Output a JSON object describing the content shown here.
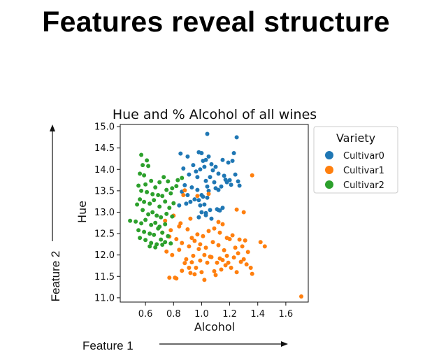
{
  "slide": {
    "title": "Features reveal structure",
    "feature1_label": "Feature 1",
    "feature2_label": "Feature 2"
  },
  "chart_data": {
    "type": "scatter",
    "title": "Hue and % Alcohol of all wines",
    "xlabel": "Alcohol",
    "ylabel": "Hue",
    "xlim": [
      0.42,
      1.76
    ],
    "ylim": [
      10.9,
      15.05
    ],
    "xticks": [
      0.6,
      0.8,
      1.0,
      1.2,
      1.4,
      1.6
    ],
    "xtick_labels": [
      "0.6",
      "0.8",
      "1.0",
      "1.2",
      "1.4",
      "1.6"
    ],
    "yticks": [
      11.0,
      11.5,
      12.0,
      12.5,
      13.0,
      13.5,
      14.0,
      14.5,
      15.0
    ],
    "ytick_labels": [
      "11.0",
      "11.5",
      "12.0",
      "12.5",
      "13.0",
      "13.5",
      "14.0",
      "14.5",
      "15.0"
    ],
    "grid": false,
    "legend": {
      "title": "Variety",
      "position": "outside-right-top"
    },
    "series": [
      {
        "name": "Cultivar0",
        "color": "#1f77b4",
        "x": [
          1.04,
          1.25,
          0.85,
          0.9,
          0.94,
          0.98,
          1.0,
          1.01,
          1.03,
          1.05,
          1.07,
          1.1,
          1.15,
          1.19,
          1.22,
          1.23,
          0.87,
          0.91,
          0.96,
          0.99,
          1.02,
          1.06,
          1.08,
          1.12,
          1.16,
          1.18,
          1.24,
          1.26,
          0.88,
          0.93,
          0.97,
          1.0,
          1.03,
          1.04,
          1.09,
          1.12,
          1.17,
          1.21,
          1.27,
          0.86,
          0.9,
          0.95,
          0.98,
          1.01,
          1.05,
          1.1,
          1.14,
          1.2,
          0.89,
          0.92,
          0.99,
          1.02,
          1.06,
          1.11,
          1.13,
          0.84,
          0.98,
          1.0,
          1.03,
          1.07,
          1.12,
          1.15,
          1.04,
          0.97,
          1.03
        ],
        "y": [
          14.83,
          14.75,
          14.37,
          14.3,
          14.1,
          14.4,
          14.38,
          14.2,
          14.22,
          14.3,
          14.12,
          14.06,
          14.22,
          14.16,
          14.2,
          14.38,
          14.02,
          13.88,
          13.95,
          14.0,
          14.06,
          13.82,
          13.98,
          13.9,
          13.85,
          13.7,
          13.88,
          13.72,
          13.63,
          13.58,
          13.52,
          13.4,
          13.73,
          13.6,
          13.7,
          13.52,
          13.76,
          13.64,
          13.62,
          13.48,
          13.4,
          13.3,
          13.28,
          13.36,
          13.5,
          13.56,
          13.6,
          13.75,
          13.2,
          13.24,
          13.16,
          13.18,
          13.05,
          13.07,
          13.04,
          13.16,
          12.88,
          13.0,
          12.93,
          12.85,
          13.05,
          13.1,
          13.34,
          13.82,
          12.98
        ]
      },
      {
        "name": "Cultivar1",
        "color": "#ff7f0e",
        "x": [
          1.36,
          1.71,
          0.87,
          0.8,
          0.74,
          0.78,
          0.85,
          0.9,
          0.93,
          0.97,
          1.01,
          1.05,
          1.09,
          1.13,
          1.18,
          1.22,
          1.27,
          1.31,
          1.42,
          1.45,
          0.72,
          0.77,
          0.82,
          0.86,
          0.91,
          0.95,
          0.99,
          1.03,
          1.08,
          1.12,
          1.16,
          1.2,
          1.24,
          1.29,
          1.33,
          0.75,
          0.79,
          0.84,
          0.89,
          0.94,
          0.98,
          1.02,
          1.07,
          1.11,
          1.15,
          1.19,
          1.23,
          1.26,
          1.3,
          1.35,
          0.81,
          0.86,
          0.92,
          0.96,
          1.0,
          1.04,
          1.1,
          1.14,
          1.21,
          1.25,
          1.32,
          0.88,
          0.93,
          0.99,
          1.06,
          1.13,
          1.18,
          1.28,
          0.77,
          0.82,
          0.91,
          0.95,
          1.02,
          1.09,
          1.17,
          1.36,
          0.84,
          0.92,
          1.3,
          1.12,
          1.25,
          1.05,
          0.88,
          0.97,
          1.15
        ],
        "y": [
          13.86,
          11.03,
          13.4,
          12.92,
          12.8,
          12.58,
          12.74,
          12.6,
          12.4,
          12.48,
          12.44,
          12.56,
          12.62,
          12.52,
          12.4,
          12.46,
          12.36,
          12.34,
          12.3,
          12.2,
          12.52,
          12.43,
          12.37,
          12.28,
          12.2,
          12.33,
          12.25,
          12.17,
          12.3,
          12.23,
          12.11,
          12.37,
          12.17,
          12.2,
          12.07,
          12.08,
          12.0,
          12.12,
          11.9,
          11.98,
          12.14,
          12.0,
          11.95,
          11.82,
          11.88,
          11.82,
          11.94,
          12.04,
          11.9,
          11.7,
          11.47,
          11.63,
          11.58,
          11.7,
          11.6,
          11.82,
          11.53,
          11.66,
          11.7,
          11.6,
          11.78,
          11.81,
          11.83,
          11.87,
          11.96,
          11.92,
          11.98,
          11.84,
          11.47,
          11.45,
          11.7,
          11.55,
          11.42,
          11.62,
          11.76,
          11.56,
          12.67,
          12.85,
          13.0,
          12.77,
          13.06,
          13.43,
          13.51,
          13.38,
          12.72
        ],
        "note_removed": ""
      },
      {
        "name": "Cultivar2",
        "color": "#2ca02c",
        "x": [
          0.57,
          0.61,
          0.58,
          0.62,
          0.56,
          0.59,
          0.64,
          0.55,
          0.6,
          0.67,
          0.7,
          0.73,
          0.76,
          0.79,
          0.83,
          0.86,
          0.57,
          0.61,
          0.65,
          0.69,
          0.72,
          0.75,
          0.78,
          0.82,
          0.56,
          0.59,
          0.63,
          0.66,
          0.7,
          0.74,
          0.77,
          0.8,
          0.54,
          0.58,
          0.62,
          0.65,
          0.68,
          0.71,
          0.75,
          0.79,
          0.49,
          0.53,
          0.57,
          0.6,
          0.64,
          0.67,
          0.7,
          0.74,
          0.55,
          0.59,
          0.63,
          0.66,
          0.69,
          0.72,
          0.76,
          0.56,
          0.6,
          0.64,
          0.68,
          0.71,
          0.74,
          0.78,
          0.63,
          0.67,
          0.72
        ],
        "y": [
          14.34,
          14.21,
          14.1,
          14.08,
          13.9,
          13.86,
          13.73,
          13.62,
          13.65,
          13.58,
          13.7,
          13.82,
          13.72,
          13.56,
          13.75,
          13.8,
          13.5,
          13.47,
          13.42,
          13.4,
          13.38,
          13.52,
          13.44,
          13.61,
          13.3,
          13.24,
          13.2,
          13.28,
          13.13,
          13.25,
          13.1,
          13.21,
          13.18,
          13.05,
          12.95,
          13.0,
          12.92,
          12.88,
          12.96,
          12.9,
          12.8,
          12.78,
          12.74,
          12.82,
          12.7,
          12.75,
          12.66,
          12.72,
          12.58,
          12.54,
          12.5,
          12.47,
          12.62,
          12.52,
          12.44,
          12.4,
          12.35,
          12.28,
          12.25,
          12.36,
          12.3,
          12.27,
          12.2,
          12.18,
          12.24
        ]
      }
    ]
  }
}
